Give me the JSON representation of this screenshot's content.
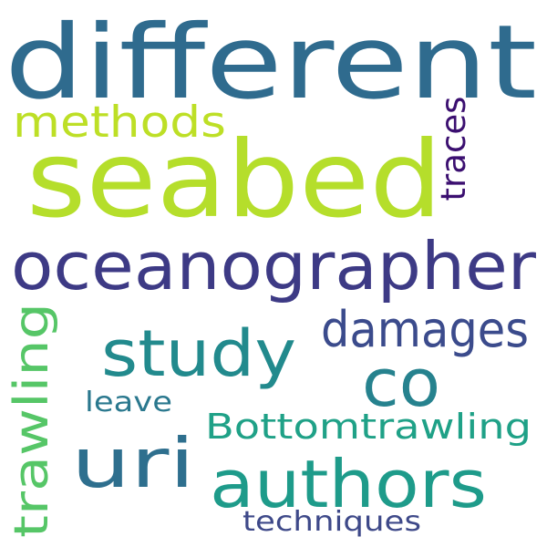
{
  "words": [
    {
      "id": "different",
      "text": "different",
      "color": "#2f6b8e"
    },
    {
      "id": "seabed",
      "text": "seabed",
      "color": "#b5de2b"
    },
    {
      "id": "methods",
      "text": "methods",
      "color": "#bddf26"
    },
    {
      "id": "traces",
      "text": "traces",
      "color": "#3b0f70"
    },
    {
      "id": "oceanographer",
      "text": "oceanographer",
      "color": "#3d3a85"
    },
    {
      "id": "damages",
      "text": "damages",
      "color": "#3b4b8c"
    },
    {
      "id": "study",
      "text": "study",
      "color": "#228a8d"
    },
    {
      "id": "trawling",
      "text": "trawling",
      "color": "#56c667"
    },
    {
      "id": "co",
      "text": "co",
      "color": "#26828e"
    },
    {
      "id": "leave",
      "text": "leave",
      "color": "#2a788e"
    },
    {
      "id": "uri",
      "text": "uri",
      "color": "#2e6f8e"
    },
    {
      "id": "bottomtrawling",
      "text": "Bottomtrawling",
      "color": "#1fa187"
    },
    {
      "id": "authors",
      "text": "authors",
      "color": "#1e9b8a"
    },
    {
      "id": "techniques",
      "text": "techniques",
      "color": "#3e4989"
    }
  ]
}
